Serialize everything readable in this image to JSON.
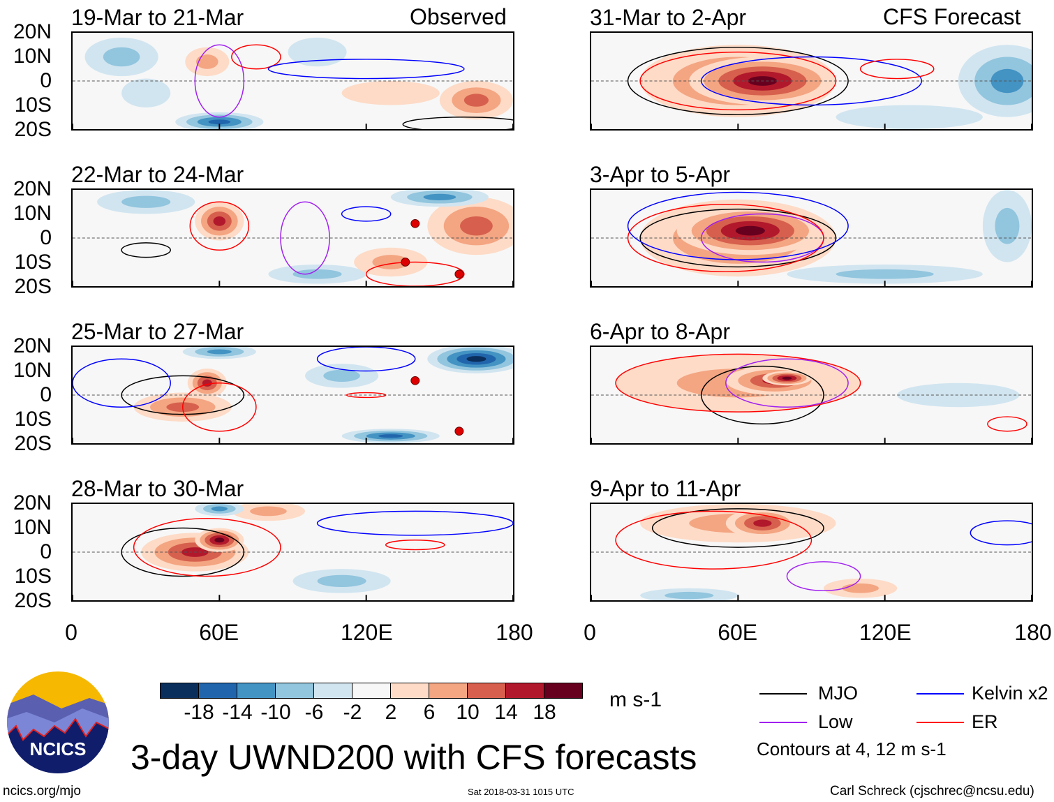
{
  "header": {
    "observed_label": "Observed",
    "forecast_label": "CFS Forecast"
  },
  "axes": {
    "lat_ticks": [
      "20N",
      "10N",
      "0",
      "10S",
      "20S"
    ],
    "lon_ticks": [
      "0",
      "60E",
      "120E",
      "180"
    ]
  },
  "colors": {
    "levels": [
      -18,
      -14,
      -10,
      -6,
      -2,
      2,
      6,
      10,
      14,
      18
    ],
    "fills": [
      "#0b2f5c",
      "#2166ac",
      "#4393c3",
      "#92c5de",
      "#d1e5f0",
      "#f7f7f7",
      "#fddbc7",
      "#f4a582",
      "#d6604d",
      "#b2182b",
      "#67001f"
    ],
    "mjo": "#000000",
    "kelvin": "#0000ff",
    "low": "#a020f0",
    "er": "#ff0000"
  },
  "colorbar": {
    "labels": [
      "-18",
      "-14",
      "-10",
      "-6",
      "-2",
      "2",
      "6",
      "10",
      "14",
      "18"
    ],
    "units": "m s-1"
  },
  "legend": {
    "items": [
      {
        "label": "MJO",
        "color": "#000000"
      },
      {
        "label": "Kelvin x2",
        "color": "#0000ff"
      },
      {
        "label": "Low",
        "color": "#a020f0"
      },
      {
        "label": "ER",
        "color": "#ff0000"
      }
    ],
    "note": "Contours at 4, 12 m s-1"
  },
  "footer": {
    "title": "3-day UWND200 with CFS forecasts",
    "url": "ncics.org/mjo",
    "timestamp": "Sat 2018-03-31 1015 UTC",
    "author": "Carl Schreck (cjschrec@ncsu.edu)",
    "logo_text": "NCICS"
  },
  "chart_data": [
    {
      "type": "heatmap",
      "title": "19-Mar to 21-Mar",
      "xlim": [
        0,
        180
      ],
      "ylim": [
        -20,
        20
      ],
      "features": [
        [
          20,
          10,
          15,
          8,
          -6
        ],
        [
          60,
          -17,
          18,
          4,
          -16
        ],
        [
          55,
          8,
          9,
          6,
          8
        ],
        [
          30,
          -5,
          10,
          6,
          -4
        ],
        [
          165,
          -8,
          15,
          8,
          10
        ],
        [
          130,
          -5,
          20,
          5,
          5
        ],
        [
          100,
          12,
          12,
          6,
          -4
        ]
      ],
      "contours": [
        [
          "er",
          75,
          10,
          10,
          5
        ],
        [
          "kelvin",
          120,
          5,
          40,
          4
        ],
        [
          "low",
          60,
          0,
          10,
          15
        ],
        [
          "mjo",
          160,
          -18,
          25,
          3
        ]
      ],
      "cyclones": []
    },
    {
      "type": "heatmap",
      "title": "22-Mar to 24-Mar",
      "xlim": [
        0,
        180
      ],
      "ylim": [
        -20,
        20
      ],
      "features": [
        [
          60,
          7,
          10,
          8,
          16
        ],
        [
          30,
          15,
          20,
          5,
          -6
        ],
        [
          165,
          5,
          20,
          12,
          10
        ],
        [
          150,
          17,
          20,
          4,
          -12
        ],
        [
          100,
          -15,
          20,
          4,
          -6
        ],
        [
          130,
          -10,
          15,
          6,
          6
        ]
      ],
      "contours": [
        [
          "er",
          60,
          5,
          12,
          10
        ],
        [
          "kelvin",
          120,
          10,
          10,
          3
        ],
        [
          "mjo",
          30,
          -5,
          10,
          3
        ],
        [
          "low",
          95,
          0,
          10,
          15
        ],
        [
          "er",
          140,
          -15,
          20,
          5
        ]
      ],
      "cyclones": [
        [
          140,
          6
        ],
        [
          136,
          -10
        ],
        [
          158,
          -15
        ]
      ]
    },
    {
      "type": "heatmap",
      "title": "25-Mar to 27-Mar",
      "xlim": [
        0,
        180
      ],
      "ylim": [
        -20,
        20
      ],
      "features": [
        [
          45,
          -5,
          20,
          6,
          12
        ],
        [
          55,
          5,
          8,
          6,
          16
        ],
        [
          165,
          15,
          20,
          6,
          -18
        ],
        [
          60,
          18,
          15,
          3,
          -12
        ],
        [
          130,
          -17,
          20,
          3,
          -14
        ],
        [
          110,
          8,
          15,
          5,
          -6
        ]
      ],
      "contours": [
        [
          "mjo",
          45,
          0,
          25,
          8
        ],
        [
          "kelvin",
          20,
          5,
          20,
          10
        ],
        [
          "er",
          60,
          -5,
          15,
          10
        ],
        [
          "kelvin",
          120,
          15,
          20,
          5
        ],
        [
          "er",
          120,
          0,
          8,
          1
        ]
      ],
      "cyclones": [
        [
          140,
          6
        ],
        [
          158,
          -15
        ]
      ]
    },
    {
      "type": "heatmap",
      "title": "28-Mar to 30-Mar",
      "xlim": [
        0,
        180
      ],
      "ylim": [
        -20,
        20
      ],
      "features": [
        [
          50,
          0,
          22,
          8,
          16
        ],
        [
          60,
          5,
          10,
          5,
          18
        ],
        [
          80,
          17,
          15,
          4,
          8
        ],
        [
          110,
          -12,
          20,
          5,
          -8
        ],
        [
          60,
          18,
          10,
          3,
          -10
        ]
      ],
      "contours": [
        [
          "mjo",
          45,
          0,
          25,
          10
        ],
        [
          "er",
          55,
          2,
          30,
          12
        ],
        [
          "kelvin",
          140,
          12,
          40,
          5
        ],
        [
          "er",
          140,
          3,
          12,
          2
        ]
      ],
      "cyclones": []
    },
    {
      "type": "heatmap",
      "title": "31-Mar to 2-Apr",
      "xlim": [
        0,
        180
      ],
      "ylim": [
        -20,
        20
      ],
      "features": [
        [
          60,
          0,
          40,
          15,
          12
        ],
        [
          70,
          0,
          30,
          10,
          18
        ],
        [
          170,
          0,
          20,
          15,
          -10
        ],
        [
          130,
          -15,
          30,
          5,
          -4
        ]
      ],
      "contours": [
        [
          "mjo",
          60,
          0,
          45,
          14
        ],
        [
          "er",
          60,
          0,
          40,
          12
        ],
        [
          "kelvin",
          90,
          0,
          45,
          10
        ],
        [
          "er",
          125,
          5,
          15,
          4
        ]
      ],
      "cyclones": []
    },
    {
      "type": "heatmap",
      "title": "3-Apr to 5-Apr",
      "xlim": [
        0,
        180
      ],
      "ylim": [
        -20,
        20
      ],
      "features": [
        [
          60,
          0,
          40,
          16,
          12
        ],
        [
          65,
          3,
          30,
          10,
          18
        ],
        [
          120,
          -15,
          40,
          4,
          -6
        ],
        [
          170,
          5,
          10,
          15,
          -8
        ]
      ],
      "contours": [
        [
          "mjo",
          60,
          0,
          40,
          12
        ],
        [
          "low",
          70,
          0,
          25,
          10
        ],
        [
          "er",
          55,
          0,
          40,
          14
        ],
        [
          "kelvin",
          60,
          5,
          45,
          14
        ]
      ],
      "cyclones": []
    },
    {
      "type": "heatmap",
      "title": "6-Apr to 8-Apr",
      "xlim": [
        0,
        180
      ],
      "ylim": [
        -20,
        20
      ],
      "features": [
        [
          60,
          5,
          50,
          12,
          8
        ],
        [
          75,
          6,
          20,
          6,
          14
        ],
        [
          80,
          7,
          10,
          3,
          18
        ],
        [
          150,
          0,
          25,
          5,
          -4
        ]
      ],
      "contours": [
        [
          "mjo",
          70,
          0,
          25,
          12
        ],
        [
          "er",
          60,
          5,
          50,
          12
        ],
        [
          "low",
          80,
          5,
          25,
          10
        ],
        [
          "er",
          170,
          -12,
          8,
          3
        ]
      ],
      "cyclones": []
    },
    {
      "type": "heatmap",
      "title": "9-Apr to 11-Apr",
      "xlim": [
        0,
        180
      ],
      "ylim": [
        -20,
        20
      ],
      "features": [
        [
          60,
          12,
          40,
          8,
          8
        ],
        [
          70,
          12,
          15,
          6,
          14
        ],
        [
          40,
          -18,
          20,
          3,
          -6
        ],
        [
          110,
          -15,
          15,
          4,
          6
        ]
      ],
      "contours": [
        [
          "mjo",
          60,
          10,
          35,
          8
        ],
        [
          "er",
          50,
          5,
          40,
          12
        ],
        [
          "kelvin",
          170,
          8,
          15,
          5
        ],
        [
          "low",
          95,
          -10,
          15,
          6
        ]
      ],
      "cyclones": []
    }
  ]
}
